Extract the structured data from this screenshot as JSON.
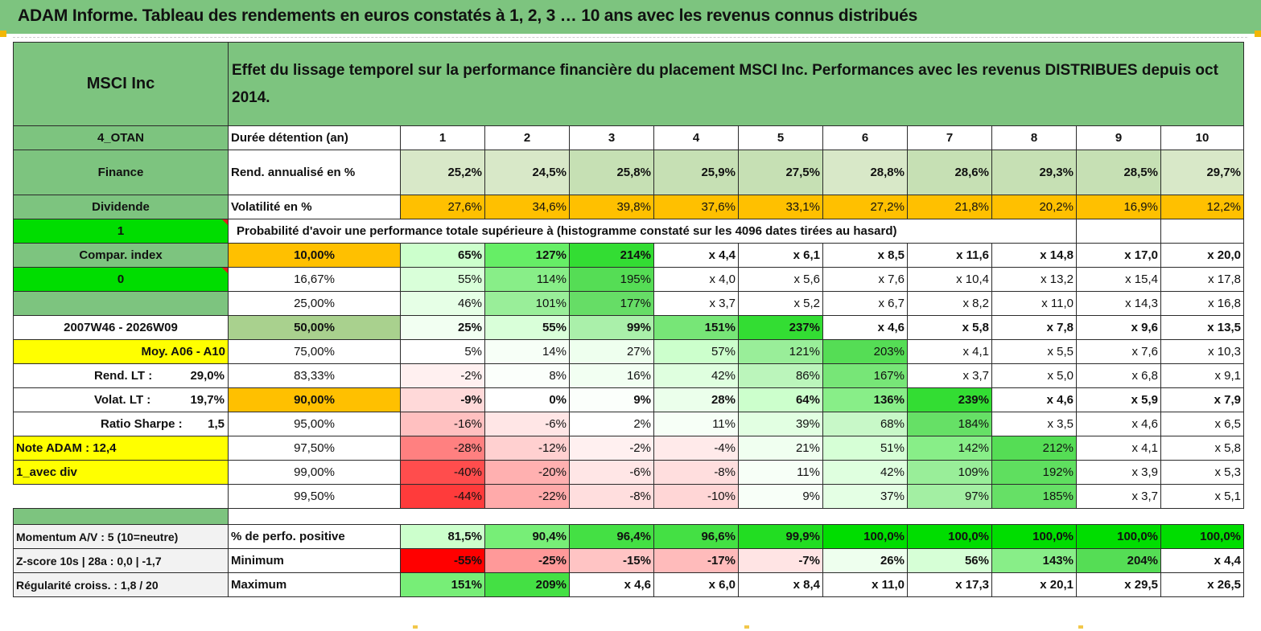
{
  "title": "ADAM Informe. Tableau des rendements en euros constatés à 1, 2, 3 … 10 ans avec les revenus connus distribués",
  "header": {
    "asset": "MSCI Inc",
    "description": "Effet du lissage temporel sur la performance financière du placement MSCI Inc. Performances avec les revenus DISTRIBUES depuis oct 2014."
  },
  "side": {
    "code": "4_OTAN",
    "sector": "Finance",
    "type": "Dividende",
    "flag1": "1",
    "compar_index": "Compar. index",
    "flag0": "0",
    "period": "2007W46 - 2026W09",
    "moy": "Moy. A06 - A10",
    "rend_lt_label": "Rend. LT :",
    "rend_lt_value": "29,0%",
    "volat_lt_label": "Volat. LT :",
    "volat_lt_value": "19,7%",
    "sharpe_label": "Ratio Sharpe :",
    "sharpe_value": "1,5",
    "note": "Note ADAM : 12,4",
    "avec_div": "1_avec div",
    "momentum": "Momentum A/V : 5 (10=neutre)",
    "zscore": "Z-score 10s | 28a : 0,0 | -1,7",
    "regularite": "Régularité croiss. : 1,8 / 20"
  },
  "years_label": "Durée détention (an)",
  "years": [
    "1",
    "2",
    "3",
    "4",
    "5",
    "6",
    "7",
    "8",
    "9",
    "10"
  ],
  "rend": {
    "label": "Rend. annualisé en %",
    "values": [
      "25,2%",
      "24,5%",
      "25,8%",
      "25,9%",
      "27,5%",
      "28,8%",
      "28,6%",
      "29,3%",
      "28,5%",
      "29,7%"
    ]
  },
  "vol": {
    "label": "Volatilité en %",
    "values": [
      "27,6%",
      "34,6%",
      "39,8%",
      "37,6%",
      "33,1%",
      "27,2%",
      "21,8%",
      "20,2%",
      "16,9%",
      "12,2%"
    ]
  },
  "proba_title": "Probabilité d'avoir une performance totale supérieure à (histogramme constaté sur les 4096 dates tirées au hasard)",
  "proba_rows": [
    {
      "p": "10,00%",
      "v": [
        "65%",
        "127%",
        "214%",
        "x 4,4",
        "x 6,1",
        "x 8,5",
        "x 11,6",
        "x 14,8",
        "x 17,0",
        "x 20,0"
      ],
      "c": [
        "#ccffcc",
        "#66ee66",
        "#33dd33",
        "#ffffff",
        "#ffffff",
        "#ffffff",
        "#ffffff",
        "#ffffff",
        "#ffffff",
        "#ffffff"
      ]
    },
    {
      "p": "16,67%",
      "v": [
        "55%",
        "114%",
        "195%",
        "x 4,0",
        "x 5,6",
        "x 7,6",
        "x 10,4",
        "x 13,2",
        "x 15,4",
        "x 17,8"
      ],
      "c": [
        "#d9ffd9",
        "#88ee88",
        "#55dd55",
        "#ffffff",
        "#ffffff",
        "#ffffff",
        "#ffffff",
        "#ffffff",
        "#ffffff",
        "#ffffff"
      ]
    },
    {
      "p": "25,00%",
      "v": [
        "46%",
        "101%",
        "177%",
        "x 3,7",
        "x 5,2",
        "x 6,7",
        "x 8,2",
        "x 11,0",
        "x 14,3",
        "x 16,8"
      ],
      "c": [
        "#e6ffe6",
        "#99ee99",
        "#66dd66",
        "#ffffff",
        "#ffffff",
        "#ffffff",
        "#ffffff",
        "#ffffff",
        "#ffffff",
        "#ffffff"
      ]
    },
    {
      "p": "50,00%",
      "v": [
        "25%",
        "55%",
        "99%",
        "151%",
        "237%",
        "x 4,6",
        "x 5,8",
        "x 7,8",
        "x 9,6",
        "x 13,5"
      ],
      "c": [
        "#f2fff2",
        "#d9ffd9",
        "#aaf0aa",
        "#77e677",
        "#33dd33",
        "#ffffff",
        "#ffffff",
        "#ffffff",
        "#ffffff",
        "#ffffff"
      ]
    },
    {
      "p": "75,00%",
      "v": [
        "5%",
        "14%",
        "27%",
        "57%",
        "121%",
        "203%",
        "x 4,1",
        "x 5,5",
        "x 7,6",
        "x 10,3"
      ],
      "c": [
        "#ffffff",
        "#f7fff7",
        "#eeffee",
        "#ccffcc",
        "#99ee99",
        "#55dd55",
        "#ffffff",
        "#ffffff",
        "#ffffff",
        "#ffffff"
      ]
    },
    {
      "p": "83,33%",
      "v": [
        "-2%",
        "8%",
        "16%",
        "42%",
        "86%",
        "167%",
        "x 3,7",
        "x 5,0",
        "x 6,8",
        "x 9,1"
      ],
      "c": [
        "#fff0f0",
        "#fbfffb",
        "#f2fff2",
        "#dfffdf",
        "#bbf5bb",
        "#77e677",
        "#ffffff",
        "#ffffff",
        "#ffffff",
        "#ffffff"
      ]
    },
    {
      "p": "90,00%",
      "v": [
        "-9%",
        "0%",
        "9%",
        "28%",
        "64%",
        "136%",
        "239%",
        "x 4,6",
        "x 5,9",
        "x 7,9"
      ],
      "c": [
        "#ffd9d9",
        "#ffffff",
        "#fbfffb",
        "#ebffeb",
        "#ccffcc",
        "#88ee88",
        "#33dd33",
        "#ffffff",
        "#ffffff",
        "#ffffff"
      ]
    },
    {
      "p": "95,00%",
      "v": [
        "-16%",
        "-6%",
        "2%",
        "11%",
        "39%",
        "68%",
        "184%",
        "x 3,5",
        "x 4,6",
        "x 6,5"
      ],
      "c": [
        "#ffc0c0",
        "#ffe6e6",
        "#ffffff",
        "#f7fff7",
        "#e2ffe2",
        "#c8f8c8",
        "#66e066",
        "#ffffff",
        "#ffffff",
        "#ffffff"
      ]
    },
    {
      "p": "97,50%",
      "v": [
        "-28%",
        "-12%",
        "-2%",
        "-4%",
        "21%",
        "51%",
        "142%",
        "212%",
        "x 4,1",
        "x 5,8"
      ],
      "c": [
        "#ff8080",
        "#ffd0d0",
        "#fff0f0",
        "#ffeaea",
        "#f0fff0",
        "#d6ffd6",
        "#88ee88",
        "#55dd55",
        "#ffffff",
        "#ffffff"
      ]
    },
    {
      "p": "99,00%",
      "v": [
        "-40%",
        "-20%",
        "-6%",
        "-8%",
        "11%",
        "42%",
        "109%",
        "192%",
        "x 3,9",
        "x 5,3"
      ],
      "c": [
        "#ff4d4d",
        "#ffb0b0",
        "#ffe6e6",
        "#ffdede",
        "#f7fff7",
        "#dfffdf",
        "#99ee99",
        "#5fdf5f",
        "#ffffff",
        "#ffffff"
      ]
    },
    {
      "p": "99,50%",
      "v": [
        "-44%",
        "-22%",
        "-8%",
        "-10%",
        "9%",
        "37%",
        "97%",
        "185%",
        "x 3,7",
        "x 5,1"
      ],
      "c": [
        "#ff3b3b",
        "#ffaaaa",
        "#ffdede",
        "#ffd6d6",
        "#f8fff8",
        "#e4ffe4",
        "#a3efa3",
        "#66e066",
        "#ffffff",
        "#ffffff"
      ]
    }
  ],
  "pos": {
    "label": "% de perfo. positive",
    "values": [
      "81,5%",
      "90,4%",
      "96,4%",
      "96,6%",
      "99,9%",
      "100,0%",
      "100,0%",
      "100,0%",
      "100,0%",
      "100,0%"
    ],
    "colors": [
      "#ccffcc",
      "#77ee77",
      "#44e044",
      "#44e044",
      "#22dd22",
      "#00dd00",
      "#00dd00",
      "#00dd00",
      "#00dd00",
      "#00dd00"
    ]
  },
  "min": {
    "label": "Minimum",
    "values": [
      "-55%",
      "-25%",
      "-15%",
      "-17%",
      "-7%",
      "26%",
      "56%",
      "143%",
      "204%",
      "x 4,4"
    ],
    "colors": [
      "#ff0000",
      "#ff9999",
      "#ffc4c4",
      "#ffbbbb",
      "#ffe4e4",
      "#eeffee",
      "#d6ffd6",
      "#88ee88",
      "#55dd55",
      "#ffffff"
    ]
  },
  "max": {
    "label": "Maximum",
    "values": [
      "151%",
      "209%",
      "x 4,6",
      "x 6,0",
      "x 8,4",
      "x 11,0",
      "x 17,3",
      "x 20,1",
      "x 29,5",
      "x 26,5"
    ],
    "colors": [
      "#77ee77",
      "#44e044",
      "#ffffff",
      "#ffffff",
      "#ffffff",
      "#ffffff",
      "#ffffff",
      "#ffffff",
      "#ffffff",
      "#ffffff"
    ]
  }
}
